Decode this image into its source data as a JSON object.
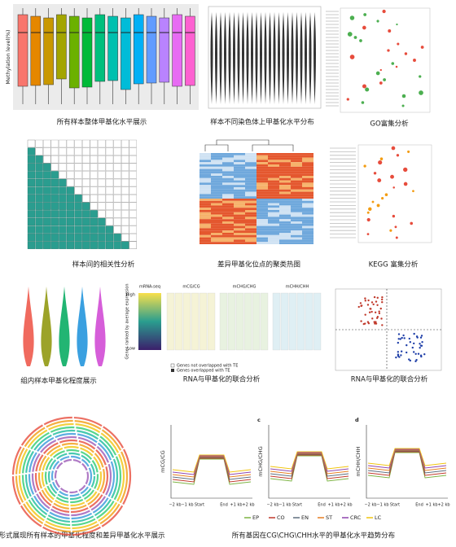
{
  "panels": [
    {
      "caption": "所有样本整体甲基化水平展示"
    },
    {
      "caption": "样本不同染色体上甲基化水平分布"
    },
    {
      "caption": "GO富集分析"
    },
    {
      "caption": "样本间的相关性分析"
    },
    {
      "caption": "差异甲基化位点的聚类热图"
    },
    {
      "caption": "KEGG 富集分析"
    },
    {
      "caption": "组内样本甲基化程度展示"
    },
    {
      "caption": "RNA与甲基化的联合分析"
    },
    {
      "caption": "RNA与甲基化的联合分析"
    },
    {
      "caption": "圈图形式展现所有样本的甲基化程度和差异甲基化水平展示"
    },
    {
      "caption": "所有基因在CG\\CHG\\CHH水平的甲基化水平趋势分布"
    }
  ],
  "boxplot": {
    "y_label": "Methylation level(%)"
  },
  "rna": {
    "headers": [
      "mRNA-seq",
      "mCG/CG",
      "mCHG/CHG",
      "mCHH/CHH"
    ],
    "high": "High",
    "low": "Low",
    "side_label": "Genes ranked by average expression",
    "legend": [
      "Genes not overlapped with TE",
      "Genes overlapped with TE"
    ]
  },
  "profiles": {
    "y_labels": [
      "mCG/CG",
      "mCHG/CHG",
      "mCHH/CHH"
    ],
    "letters": [
      "c",
      "d"
    ],
    "x_labels": [
      "−2 kb",
      "−1 kb",
      "Start",
      "End",
      "+1 kb",
      "+2 kb"
    ],
    "series": [
      {
        "name": "EP",
        "color": "#7cb342"
      },
      {
        "name": "CO",
        "color": "#c0392b"
      },
      {
        "name": "EN",
        "color": "#5d6d7e"
      },
      {
        "name": "ST",
        "color": "#e67e22"
      },
      {
        "name": "CRC",
        "color": "#8e44ad"
      },
      {
        "name": "LC",
        "color": "#f1c40f"
      }
    ]
  }
}
